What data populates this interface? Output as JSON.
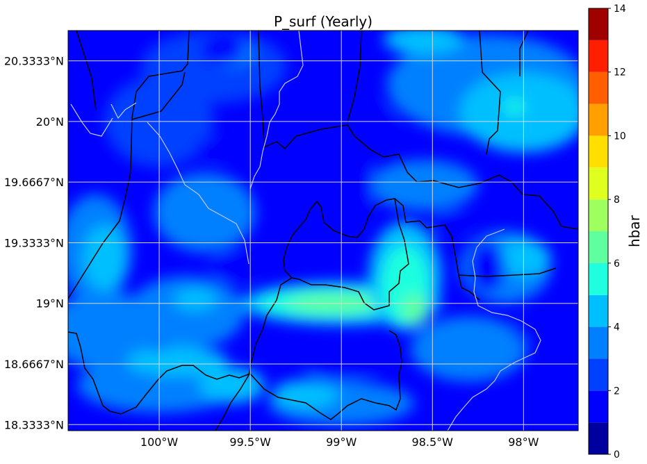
{
  "chart_data": {
    "type": "heatmap",
    "title": "P_surf (Yearly)",
    "x_ticks": [
      "100°W",
      "99.5°W",
      "99°W",
      "98.5°W",
      "98°W"
    ],
    "x_tick_values": [
      -100.0,
      -99.5,
      -99.0,
      -98.5,
      -98.0
    ],
    "y_ticks": [
      "18.3333°N",
      "18.6667°N",
      "19°N",
      "19.3333°N",
      "19.6667°N",
      "20°N",
      "20.3333°N"
    ],
    "y_tick_values": [
      18.3333,
      18.6667,
      19.0,
      19.3333,
      19.6667,
      20.0,
      20.3333
    ],
    "xlim": [
      -100.5,
      -97.7
    ],
    "ylim": [
      18.3,
      20.5
    ],
    "grid": true,
    "colorbar": {
      "label": "hbar",
      "ticks": [
        "0",
        "2",
        "4",
        "6",
        "8",
        "10",
        "12",
        "14"
      ],
      "tick_values": [
        0,
        2,
        4,
        6,
        8,
        10,
        12,
        14
      ],
      "range": [
        0,
        14
      ],
      "levels": [
        0,
        1,
        2,
        3,
        4,
        5,
        6,
        7,
        8,
        9,
        10,
        11,
        12,
        13,
        14
      ],
      "colors": [
        "#00009f",
        "#0000ff",
        "#0040ff",
        "#0080ff",
        "#00bfff",
        "#1fffdf",
        "#5fff9f",
        "#9fff5f",
        "#dfff1f",
        "#ffdf00",
        "#ff9f00",
        "#ff5f00",
        "#ff1f00",
        "#9f0000"
      ]
    },
    "field_summary": {
      "background_range": [
        1,
        3
      ],
      "max_value": 6.5,
      "max_location": "near 99°W, 19°N and 98.6°W, 18.95°N"
    }
  }
}
